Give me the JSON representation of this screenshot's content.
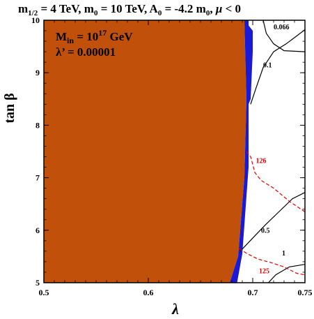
{
  "chart_data": {
    "type": "contour",
    "title_parts": {
      "m": "m",
      "half_sub": "1/2",
      "part1": " = 4 TeV, m",
      "zero_sub1": "0",
      "part2": " = 10 TeV, A",
      "zero_sub2": "0",
      "part3": " = -4.2 m",
      "zero_sub3": "0",
      "part4": ", ",
      "mu": "μ",
      "part5": " < 0"
    },
    "xlabel": "λ",
    "ylabel": "tan β",
    "xlim": [
      0.5,
      0.75
    ],
    "ylim": [
      5,
      10
    ],
    "xticks": [
      0.5,
      0.6,
      0.7,
      0.75
    ],
    "xtick_labels": [
      "0.5",
      "0.6",
      "0.7",
      "0.75"
    ],
    "yticks": [
      5,
      6,
      7,
      8,
      9,
      10
    ],
    "ytick_labels": [
      "5",
      "6",
      "7",
      "8",
      "9",
      "10"
    ],
    "annotations": {
      "min_M": "M",
      "min_sub": "in",
      "min_eq": " = 10",
      "min_sup": "17",
      "min_unit": " GeV",
      "lambda_prime": "λ’ = 0.00001"
    },
    "regions": [
      {
        "name": "excluded-orange",
        "color": "#c0500a",
        "points": [
          [
            0.5,
            5
          ],
          [
            0.678,
            5
          ],
          [
            0.686,
            5.5
          ],
          [
            0.692,
            7.0
          ],
          [
            0.694,
            8.5
          ],
          [
            0.692,
            10
          ],
          [
            0.5,
            10
          ]
        ]
      },
      {
        "name": "excluded-blue",
        "color": "#1a1ad6",
        "points": [
          [
            0.678,
            5
          ],
          [
            0.685,
            5
          ],
          [
            0.69,
            5.55
          ],
          [
            0.696,
            7.2
          ],
          [
            0.696,
            8.4
          ],
          [
            0.698,
            8.5
          ],
          [
            0.7,
            9.4
          ],
          [
            0.7,
            9.8
          ],
          [
            0.696,
            9.9
          ],
          [
            0.696,
            10
          ],
          [
            0.692,
            10
          ],
          [
            0.694,
            8.5
          ],
          [
            0.692,
            7.0
          ],
          [
            0.686,
            5.5
          ]
        ]
      }
    ],
    "contours": [
      {
        "label": "0.066",
        "color": "#000000",
        "dashed": false,
        "points": [
          [
            0.71,
            10
          ],
          [
            0.713,
            9.75
          ],
          [
            0.72,
            9.55
          ],
          [
            0.73,
            9.42
          ],
          [
            0.75,
            9.4
          ]
        ]
      },
      {
        "label": "0.1",
        "color": "#000000",
        "dashed": false,
        "points": [
          [
            0.698,
            8.4
          ],
          [
            0.703,
            8.7
          ],
          [
            0.71,
            9.1
          ],
          [
            0.72,
            9.4
          ],
          [
            0.732,
            9.55
          ],
          [
            0.742,
            9.7
          ],
          [
            0.75,
            9.82
          ]
        ]
      },
      {
        "label": "0.5",
        "color": "#000000",
        "dashed": false,
        "points": [
          [
            0.688,
            5.6
          ],
          [
            0.7,
            5.85
          ],
          [
            0.712,
            6.1
          ],
          [
            0.725,
            6.35
          ],
          [
            0.738,
            6.6
          ],
          [
            0.75,
            6.72
          ]
        ]
      },
      {
        "label": "1",
        "color": "#000000",
        "dashed": false,
        "points": [
          [
            0.715,
            5
          ],
          [
            0.722,
            5.15
          ],
          [
            0.735,
            5.3
          ],
          [
            0.75,
            5.35
          ]
        ]
      },
      {
        "label": "126",
        "color": "#e00000",
        "dashed": true,
        "points": [
          [
            0.694,
            7.5
          ],
          [
            0.698,
            7.4
          ],
          [
            0.702,
            7.1
          ],
          [
            0.708,
            6.95
          ],
          [
            0.72,
            6.8
          ],
          [
            0.735,
            6.55
          ],
          [
            0.75,
            6.35
          ]
        ]
      },
      {
        "label": "125",
        "color": "#e00000",
        "dashed": true,
        "points": [
          [
            0.687,
            5.65
          ],
          [
            0.695,
            5.55
          ],
          [
            0.705,
            5.45
          ],
          [
            0.718,
            5.38
          ],
          [
            0.73,
            5.3
          ],
          [
            0.742,
            5.18
          ],
          [
            0.75,
            5.15
          ]
        ]
      }
    ],
    "contour_label_positions": {
      "0.066": [
        0.72,
        9.83
      ],
      "0.1": [
        0.71,
        9.1
      ],
      "0.5": [
        0.708,
        5.95
      ],
      "1": [
        0.728,
        5.52
      ],
      "126": [
        0.703,
        7.28
      ],
      "125": [
        0.706,
        5.18
      ]
    },
    "grid": false
  }
}
